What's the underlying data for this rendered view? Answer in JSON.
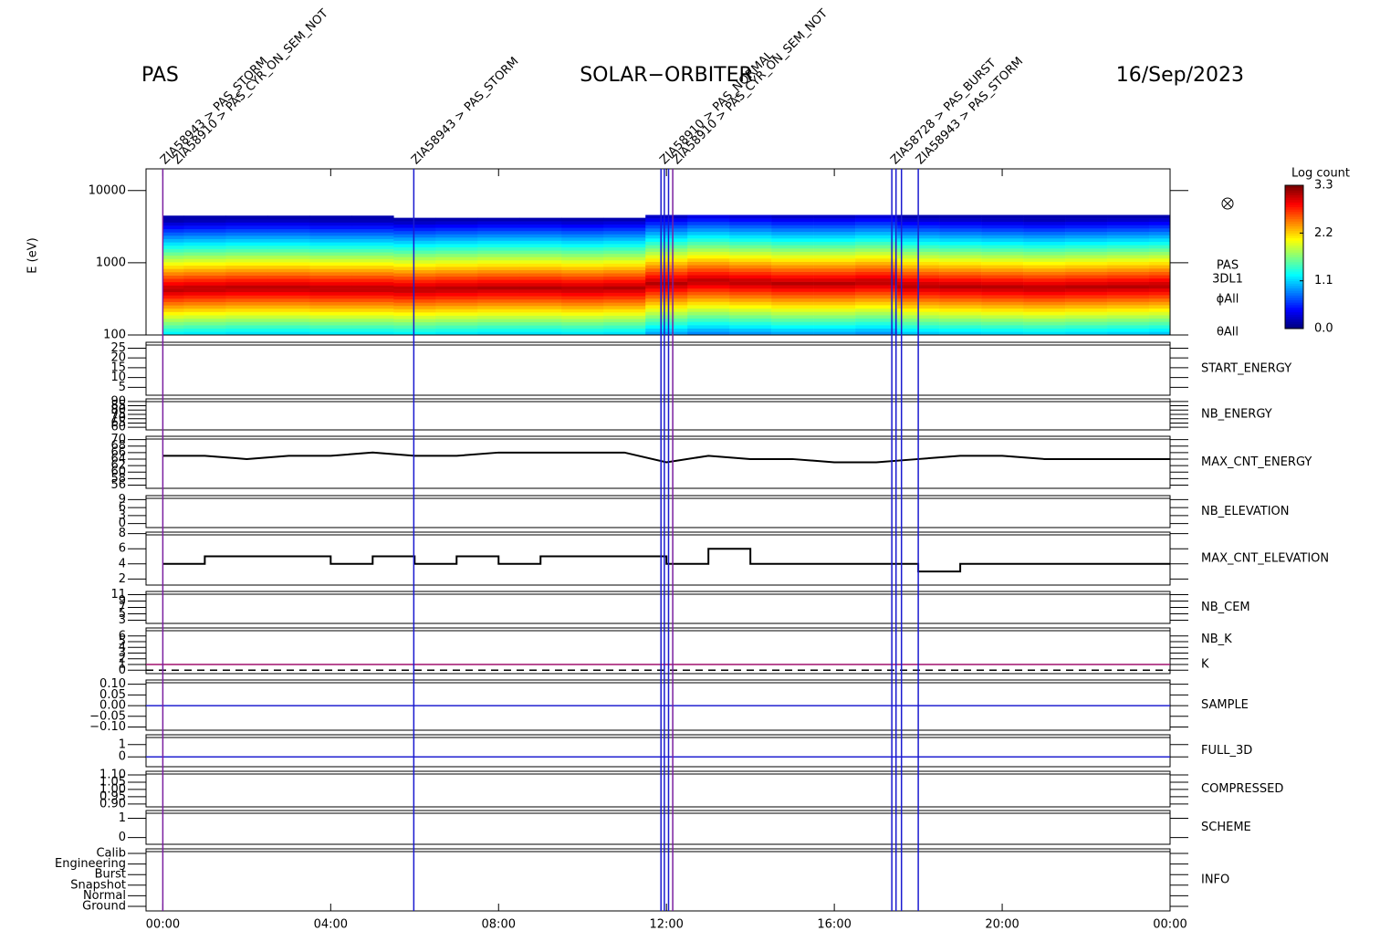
{
  "chart_data": {
    "type": "multipanel",
    "header": {
      "left": "PAS",
      "center": "SOLAR−ORBITER",
      "right": "16/Sep/2023"
    },
    "xlim": [
      -0.4,
      24
    ],
    "xticks": [
      {
        "value": 0,
        "label": "00:00"
      },
      {
        "value": 4,
        "label": "04:00"
      },
      {
        "value": 8,
        "label": "08:00"
      },
      {
        "value": 12,
        "label": "12:00"
      },
      {
        "value": 16,
        "label": "16:00"
      },
      {
        "value": 20,
        "label": "20:00"
      },
      {
        "value": 24,
        "label": "00:00"
      }
    ],
    "events": [
      {
        "time": 0,
        "color": "#7a1fa0"
      },
      {
        "time": 5.98,
        "color": "#1a1ad0"
      },
      {
        "time": 11.87,
        "color": "#1a1ad0"
      },
      {
        "time": 11.95,
        "color": "#1a1ad0"
      },
      {
        "time": 12.05,
        "color": "#1a1ad0"
      },
      {
        "time": 12.15,
        "color": "#7a1fa0"
      },
      {
        "time": 17.37,
        "color": "#1a1ad0"
      },
      {
        "time": 17.47,
        "color": "#1a1ad0"
      },
      {
        "time": 17.6,
        "color": "#1a1ad0"
      },
      {
        "time": 18.0,
        "color": "#1a1ad0"
      }
    ],
    "annotations": [
      {
        "time": 0,
        "text": "ZIA58943 > PAS_STORM",
        "color": "#1a1ad0"
      },
      {
        "time": 0.3,
        "text": "ZIA58910 > PAS_CYR_ON_SEM_NOT",
        "color": "#e02020"
      },
      {
        "time": 5.98,
        "text": "ZIA58943 > PAS_STORM",
        "color": "#1a1ad0"
      },
      {
        "time": 11.9,
        "text": "ZIA58910 > PAS_NORMAL",
        "color": "#1a1ad0"
      },
      {
        "time": 12.2,
        "text": "ZIA58910 > PAS_CYR_ON_SEM_NOT",
        "color": "#e02020"
      },
      {
        "time": 17.4,
        "text": "ZIA58728 > PAS_BURST",
        "color": "#1a1ad0"
      },
      {
        "time": 18.0,
        "text": "ZIA58943 > PAS_STORM",
        "color": "#1a1ad0"
      }
    ],
    "spectrogram": {
      "ylabel": "E (eV)",
      "ylim": [
        100,
        20000
      ],
      "yticks": [
        100,
        1000,
        10000
      ],
      "log": true,
      "labels": [
        {
          "text": "PAS",
          "color": "#000"
        },
        {
          "text": "3DL1",
          "color": "#000"
        },
        {
          "text": "ϕAll",
          "color": "#000"
        },
        {
          "text": "θAll",
          "color": "#000"
        }
      ],
      "x": [
        0,
        1,
        2,
        3,
        4,
        5,
        6,
        7,
        8,
        9,
        10,
        11,
        12,
        13,
        14,
        15,
        16,
        17,
        18,
        19,
        20,
        21,
        22,
        23,
        24
      ],
      "peak_energy": [
        430,
        440,
        450,
        450,
        440,
        440,
        430,
        440,
        450,
        450,
        440,
        450,
        520,
        560,
        540,
        520,
        520,
        540,
        480,
        470,
        460,
        450,
        460,
        470,
        480
      ],
      "upper_energy": [
        4500,
        4500,
        4500,
        4500,
        4500,
        4500,
        4200,
        4200,
        4200,
        4200,
        4200,
        4200,
        4600,
        4600,
        4600,
        4600,
        4600,
        4600,
        4600,
        4600,
        4600,
        4600,
        4600,
        4600,
        4600
      ],
      "colorbar": {
        "title": "Log count",
        "zlim": [
          0,
          3.3
        ],
        "zticks": [
          {
            "value": 0,
            "label": "0.0"
          },
          1.1,
          2.2,
          3.3
        ]
      }
    },
    "panels": [
      {
        "labels": [
          {
            "text": "START_ENERGY",
            "color": "#000"
          }
        ],
        "ylim": [
          1,
          28
        ],
        "yticks": [
          5,
          10,
          15,
          20,
          25
        ]
      },
      {
        "labels": [
          {
            "text": "NB_ENERGY",
            "color": "#2020b0"
          }
        ],
        "ylim": [
          57,
          93
        ],
        "yticks": [
          60,
          65,
          70,
          75,
          80,
          85,
          90
        ]
      },
      {
        "labels": [
          {
            "text": "MAX_CNT_ENERGY",
            "color": "#000"
          }
        ],
        "ylim": [
          55,
          71
        ],
        "yticks": [
          56,
          58,
          60,
          62,
          64,
          66,
          68,
          70
        ],
        "x": [
          0,
          1,
          2,
          3,
          4,
          5,
          6,
          7,
          8,
          9,
          10,
          11,
          12,
          13,
          14,
          15,
          16,
          17,
          18,
          19,
          20,
          21,
          22,
          23,
          24
        ],
        "values": [
          65,
          65,
          64,
          65,
          65,
          66,
          65,
          65,
          66,
          66,
          66,
          66,
          63,
          65,
          64,
          64,
          63,
          63,
          64,
          65,
          65,
          64,
          64,
          64,
          64
        ],
        "color": "#000"
      },
      {
        "labels": [
          {
            "text": "NB_ELEVATION",
            "color": "#2020b0"
          }
        ],
        "ylim": [
          -1.5,
          10.5
        ],
        "yticks": [
          0,
          3,
          6,
          9
        ]
      },
      {
        "labels": [
          {
            "text": "MAX_CNT_ELEVATION",
            "color": "#000"
          }
        ],
        "ylim": [
          1.2,
          8.2
        ],
        "yticks": [
          2,
          4,
          6,
          8
        ],
        "step": true,
        "x": [
          0,
          1,
          2,
          3,
          4,
          5,
          6,
          7,
          8,
          9,
          10,
          11,
          12,
          13,
          14,
          15,
          16,
          17,
          18,
          19,
          20,
          21,
          22,
          23,
          24
        ],
        "values": [
          4,
          5,
          5,
          5,
          4,
          5,
          4,
          5,
          4,
          5,
          5,
          5,
          4,
          6,
          4,
          4,
          4,
          4,
          3,
          4,
          4,
          4,
          4,
          4,
          4
        ],
        "color": "#000"
      },
      {
        "labels": [
          {
            "text": "NB_CEM",
            "color": "#2020b0"
          }
        ],
        "ylim": [
          2,
          12
        ],
        "yticks": [
          3,
          5,
          7,
          9,
          11
        ]
      },
      {
        "labels": [
          {
            "text": "NB_K",
            "color": "#d02020"
          },
          {
            "text": "K",
            "color": "#2020b0"
          }
        ],
        "ylim": [
          -0.6,
          7.4
        ],
        "yticks": [
          0,
          1,
          2,
          3,
          4,
          5,
          6
        ],
        "hlines": [
          {
            "value": 1,
            "color": "#a0106e",
            "dashed": false
          },
          {
            "value": 0,
            "color": "#000",
            "dashed": true
          }
        ]
      },
      {
        "labels": [
          {
            "text": "SAMPLE",
            "color": "#2020b0"
          }
        ],
        "ylim": [
          -0.115,
          0.12
        ],
        "yticks": [
          {
            "value": -0.1,
            "label": "−0.10"
          },
          {
            "value": -0.05,
            "label": "−0.05"
          },
          {
            "value": 0,
            "label": "0.00"
          },
          {
            "value": 0.05,
            "label": "0.05"
          },
          {
            "value": 0.1,
            "label": "0.10"
          }
        ],
        "hlines": [
          {
            "value": 0,
            "color": "#2020d0",
            "dashed": false
          }
        ]
      },
      {
        "labels": [
          {
            "text": "FULL_3D",
            "color": "#2020b0"
          }
        ],
        "ylim": [
          -0.8,
          1.8
        ],
        "yticks": [
          0,
          1
        ],
        "hlines": [
          {
            "value": 0,
            "color": "#2020d0",
            "dashed": false
          }
        ]
      },
      {
        "labels": [
          {
            "text": "COMPRESSED",
            "color": "#000"
          }
        ],
        "ylim": [
          0.88,
          1.125
        ],
        "yticks": [
          {
            "value": 0.9,
            "label": "0.90"
          },
          {
            "value": 0.95,
            "label": "0.95"
          },
          {
            "value": 1,
            "label": "1.00"
          },
          {
            "value": 1.05,
            "label": "1.05"
          },
          {
            "value": 1.1,
            "label": "1.10"
          }
        ]
      },
      {
        "labels": [
          {
            "text": "SCHEME",
            "color": "#000"
          }
        ],
        "ylim": [
          -0.35,
          1.4
        ],
        "yticks": [
          0,
          1
        ]
      },
      {
        "labels": [
          {
            "text": "INFO",
            "color": "#000"
          }
        ],
        "categories": [
          "Ground",
          "Normal",
          "Snapshot",
          "Burst",
          "Engineering",
          "Calib"
        ]
      }
    ]
  }
}
